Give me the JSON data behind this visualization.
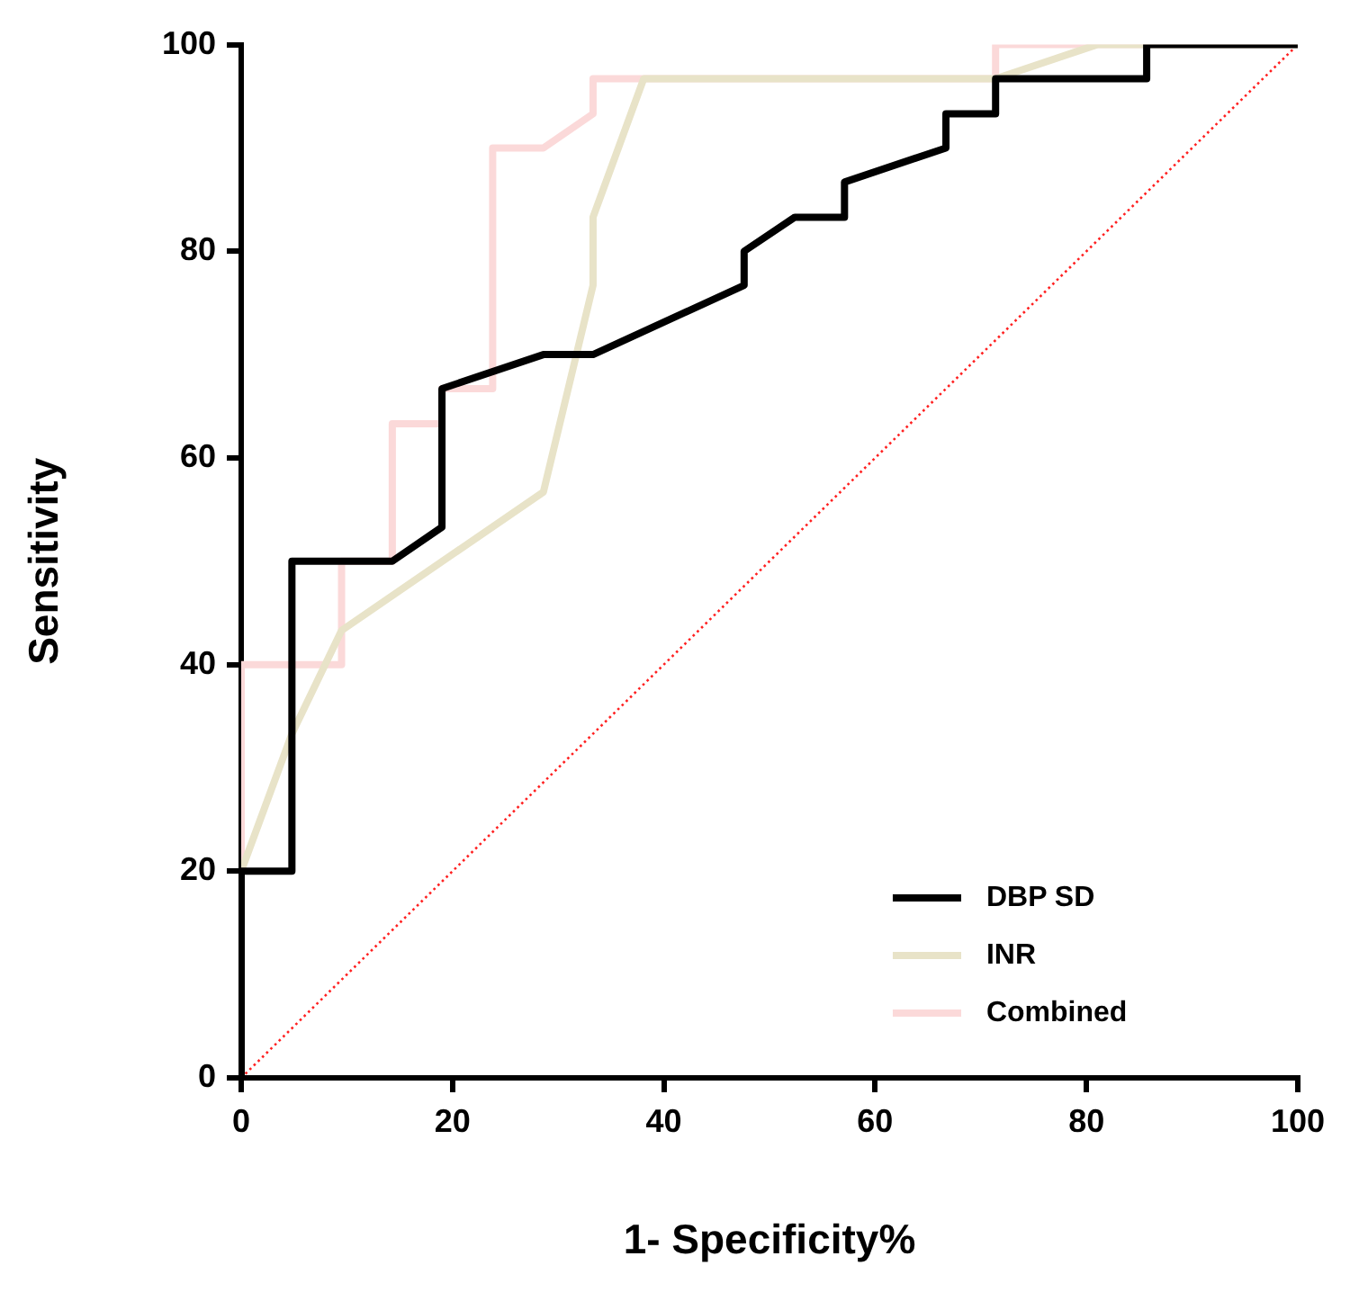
{
  "chart_data": {
    "type": "line",
    "xlabel": "1- Specificity%",
    "ylabel": "Sensitivity",
    "xlim": [
      0,
      100
    ],
    "ylim": [
      0,
      100
    ],
    "xticks": [
      0,
      20,
      40,
      60,
      80,
      100
    ],
    "yticks": [
      0,
      20,
      40,
      60,
      80,
      100
    ],
    "grid": false,
    "legend": "bottom right",
    "marker": "none",
    "series": [
      {
        "name": "DBP SD",
        "color": "#000000",
        "x": [
          0,
          0,
          4.8,
          4.8,
          14.3,
          19,
          19,
          28.6,
          33.3,
          47.6,
          47.6,
          52.4,
          57.1,
          57.1,
          66.7,
          66.7,
          71.4,
          71.4,
          85.7,
          85.7,
          100
        ],
        "values": [
          0,
          20,
          20,
          50,
          50,
          53.3,
          66.7,
          70,
          70,
          76.7,
          80,
          83.3,
          83.3,
          86.7,
          90,
          93.3,
          93.3,
          96.7,
          96.7,
          100,
          100
        ]
      },
      {
        "name": "INR",
        "color": "#e8e3c8",
        "x": [
          0,
          0,
          4.8,
          9.5,
          28.6,
          33.3,
          33.3,
          38.1,
          71.4,
          81,
          100
        ],
        "values": [
          0,
          20,
          33.3,
          43.3,
          56.7,
          76.7,
          83.3,
          96.7,
          96.7,
          100,
          100
        ]
      },
      {
        "name": "Combined",
        "color": "#fbd9d9",
        "x": [
          0,
          0,
          9.5,
          9.5,
          14.3,
          14.3,
          19,
          19,
          23.8,
          23.8,
          28.6,
          33.3,
          33.3,
          71.4,
          71.4,
          100
        ],
        "values": [
          0,
          40,
          40,
          50,
          50,
          63.3,
          63.3,
          66.7,
          66.7,
          90,
          90,
          93.3,
          96.7,
          96.7,
          100,
          100
        ]
      },
      {
        "color": "#ff2020",
        "line_style": "dotted",
        "x": [
          0,
          100
        ],
        "values": [
          0,
          100
        ]
      }
    ]
  }
}
